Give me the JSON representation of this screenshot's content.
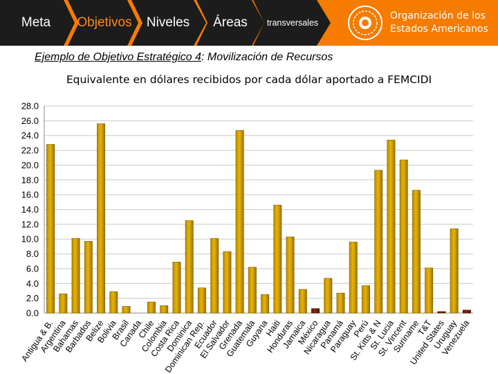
{
  "header": {
    "tabs": [
      {
        "label": "Meta"
      },
      {
        "label": "Objetivos"
      },
      {
        "label": "Niveles"
      },
      {
        "label": "Áreas"
      },
      {
        "label": "transversales"
      }
    ],
    "org_name_line1": "Organización de los",
    "org_name_line2": "Estados Americanos"
  },
  "subtitle": {
    "prefix": "Ejemplo de Objetivo Estratégico 4",
    "suffix": ": Movilización de Recursos"
  },
  "colors": {
    "header_bg": "#f57c00",
    "bar_yellow": "#e9b400",
    "bar_dark": "#8b2a00"
  },
  "chart_data": {
    "type": "bar",
    "title": "Equivalente en dólares recibidos por cada dólar aportado a FEMCIDI",
    "xlabel": "",
    "ylabel": "",
    "ylim": [
      0,
      28
    ],
    "yticks": [
      "0.0",
      "2.0",
      "4.0",
      "6.0",
      "8.0",
      "10.0",
      "12.0",
      "14.0",
      "16.0",
      "18.0",
      "20.0",
      "22.0",
      "24.0",
      "26.0",
      "28.0"
    ],
    "categories": [
      "Antigua & B.",
      "Argentina",
      "Bahamas",
      "Barbados",
      "Belize",
      "Bolivia",
      "Brasil",
      "Canada",
      "Chile",
      "Colombia",
      "Costa Rica",
      "Dominica",
      "Dominican Rep.",
      "Ecuador",
      "El Salvador",
      "Grenada",
      "Guatemala",
      "Guyana",
      "Haiti",
      "Honduras",
      "Jamaica",
      "México",
      "Nicaragua",
      "Panamá",
      "Paraguay",
      "Perú",
      "St. Kitts & N",
      "St. Lucia",
      "St. Vincent",
      "Suriname",
      "T&T",
      "United States",
      "Uruguay",
      "Venezuela"
    ],
    "values": [
      22.8,
      2.6,
      10.1,
      9.7,
      25.6,
      2.9,
      0.9,
      0.0,
      1.5,
      1.0,
      6.9,
      12.5,
      3.4,
      10.1,
      8.3,
      24.7,
      6.2,
      2.5,
      14.6,
      10.3,
      3.2,
      0.6,
      4.7,
      2.7,
      9.6,
      3.7,
      19.3,
      23.4,
      20.7,
      16.6,
      6.1,
      0.2,
      11.4,
      0.4
    ],
    "highlight": [
      "México",
      "United States",
      "Venezuela"
    ]
  }
}
